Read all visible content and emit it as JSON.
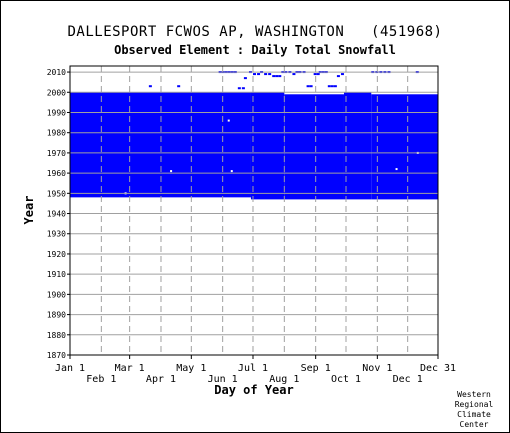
{
  "chart_data": {
    "type": "heatmap",
    "title": "DALLESPORT FCWOS AP, WASHINGTON   (451968)",
    "subtitle": "Observed Element : Daily Total Snowfall",
    "xlabel": "Day of Year",
    "ylabel": "Year",
    "ylim": [
      1870,
      2013
    ],
    "yticks": [
      1870,
      1880,
      1890,
      1900,
      1910,
      1920,
      1930,
      1940,
      1950,
      1960,
      1970,
      1980,
      1990,
      2000,
      2010
    ],
    "xticks_top": [
      {
        "label": "Jan 1",
        "day": 1
      },
      {
        "label": "Mar 1",
        "day": 60
      },
      {
        "label": "May 1",
        "day": 121
      },
      {
        "label": "Jul 1",
        "day": 182
      },
      {
        "label": "Sep 1",
        "day": 244
      },
      {
        "label": "Nov 1",
        "day": 305
      },
      {
        "label": "Dec 31",
        "day": 365
      }
    ],
    "xticks_bottom": [
      {
        "label": "Feb 1",
        "day": 32
      },
      {
        "label": "Apr 1",
        "day": 91
      },
      {
        "label": "Jun 1",
        "day": 152
      },
      {
        "label": "Aug 1",
        "day": 213
      },
      {
        "label": "Oct 1",
        "day": 274
      },
      {
        "label": "Dec 1",
        "day": 335
      }
    ],
    "color": "#0000ff",
    "data_blocks": [
      {
        "day_start": 1,
        "day_end": 180,
        "year_start": 1948,
        "year_end": 2000
      },
      {
        "day_start": 180,
        "day_end": 213,
        "year_start": 1947,
        "year_end": 2000
      },
      {
        "day_start": 213,
        "day_end": 272,
        "year_start": 1947,
        "year_end": 1999
      },
      {
        "day_start": 272,
        "day_end": 299,
        "year_start": 1947,
        "year_end": 2000
      },
      {
        "day_start": 299,
        "day_end": 365,
        "year_start": 1947,
        "year_end": 1999
      }
    ],
    "scattered_points": [
      {
        "day": 80,
        "year": 2003
      },
      {
        "day": 108,
        "year": 2003
      },
      {
        "day": 149,
        "year": 2010
      },
      {
        "day": 152,
        "year": 2010
      },
      {
        "day": 155,
        "year": 2010
      },
      {
        "day": 158,
        "year": 2010
      },
      {
        "day": 161,
        "year": 2010
      },
      {
        "day": 164,
        "year": 2010
      },
      {
        "day": 168,
        "year": 2002
      },
      {
        "day": 172,
        "year": 2002
      },
      {
        "day": 174,
        "year": 2007
      },
      {
        "day": 179,
        "year": 2010
      },
      {
        "day": 183,
        "year": 2009
      },
      {
        "day": 187,
        "year": 2009
      },
      {
        "day": 190,
        "year": 2010
      },
      {
        "day": 194,
        "year": 2009
      },
      {
        "day": 198,
        "year": 2009
      },
      {
        "day": 202,
        "year": 2008
      },
      {
        "day": 205,
        "year": 2008
      },
      {
        "day": 208,
        "year": 2008
      },
      {
        "day": 211,
        "year": 2010
      },
      {
        "day": 214,
        "year": 2010
      },
      {
        "day": 218,
        "year": 2010
      },
      {
        "day": 222,
        "year": 2009
      },
      {
        "day": 225,
        "year": 2010
      },
      {
        "day": 228,
        "year": 2010
      },
      {
        "day": 232,
        "year": 2010
      },
      {
        "day": 236,
        "year": 2003
      },
      {
        "day": 239,
        "year": 2003
      },
      {
        "day": 243,
        "year": 2009
      },
      {
        "day": 246,
        "year": 2009
      },
      {
        "day": 248,
        "year": 2010
      },
      {
        "day": 251,
        "year": 2010
      },
      {
        "day": 254,
        "year": 2010
      },
      {
        "day": 257,
        "year": 2003
      },
      {
        "day": 260,
        "year": 2003
      },
      {
        "day": 263,
        "year": 2003
      },
      {
        "day": 266,
        "year": 2008
      },
      {
        "day": 270,
        "year": 2009
      },
      {
        "day": 300,
        "year": 2010
      },
      {
        "day": 304,
        "year": 2010
      },
      {
        "day": 308,
        "year": 2010
      },
      {
        "day": 312,
        "year": 2010
      },
      {
        "day": 316,
        "year": 2010
      },
      {
        "day": 344,
        "year": 2010
      }
    ],
    "gaps_in_blocks": [
      {
        "day": 101,
        "year": 1961
      },
      {
        "day": 158,
        "year": 1986
      },
      {
        "day": 161,
        "year": 1961
      },
      {
        "day": 324,
        "year": 1962
      },
      {
        "day": 345,
        "year": 1970
      },
      {
        "day": 56,
        "year": 1950
      }
    ],
    "grid": true
  },
  "credit": [
    "Western",
    "Regional",
    "Climate",
    "Center"
  ]
}
